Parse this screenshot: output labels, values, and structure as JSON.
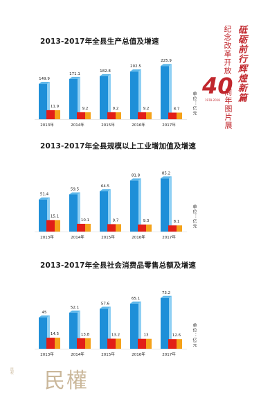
{
  "unit_label": "单位：亿元",
  "side_panel": {
    "calligraphy": "砥砺前行辉煌新篇",
    "line1": "纪念改革开放",
    "anniv_number": "40",
    "anniv_years": "1978-2018",
    "line2": "周年图片展"
  },
  "bottom_logo": {
    "title": "民權",
    "small": "民权"
  },
  "colors": {
    "blue": "#1e8fd8",
    "blue_light": "#8fd0f4",
    "red": "#e21e17",
    "orange": "#f5a21a"
  },
  "chart_data": [
    {
      "type": "bar",
      "title": "2013-2017年全县生产总值及增速",
      "categories": [
        "2013年",
        "2014年",
        "2015年",
        "2016年",
        "2017年"
      ],
      "series": [
        {
          "name": "",
          "values": [
            149.9,
            171.1,
            182.8,
            202.5,
            225.9
          ]
        },
        {
          "name": "",
          "values": [
            11.9,
            9.2,
            9.2,
            9.2,
            8.7
          ]
        }
      ],
      "ylabel": "单位：亿元"
    },
    {
      "type": "bar",
      "title": "2013-2017年全县规模以上工业增加值及增速",
      "categories": [
        "2013年",
        "2014年",
        "2015年",
        "2016年",
        "2017年"
      ],
      "series": [
        {
          "name": "",
          "values": [
            51.4,
            59.5,
            64.5,
            81.8,
            85.2
          ]
        },
        {
          "name": "",
          "values": [
            15.1,
            10.1,
            9.7,
            9.3,
            8.1
          ]
        }
      ],
      "ylabel": "单位：亿元"
    },
    {
      "type": "bar",
      "title": "2013-2017年全县社会消费品零售总额及增速",
      "categories": [
        "2013年",
        "2014年",
        "2015年",
        "2016年",
        "2017年"
      ],
      "series": [
        {
          "name": "",
          "values": [
            45,
            52.1,
            57.6,
            65.1,
            73.2
          ]
        },
        {
          "name": "",
          "values": [
            14.5,
            13.8,
            13.2,
            13,
            12.6
          ]
        }
      ],
      "ylabel": "单位：亿元"
    }
  ]
}
